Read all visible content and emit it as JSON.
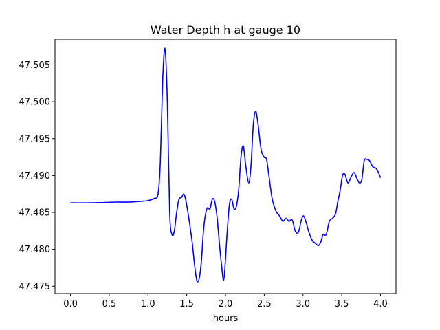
{
  "chart_data": {
    "type": "line",
    "title": "Water Depth h at gauge 10",
    "xlabel": "hours",
    "ylabel": "",
    "xlim": [
      -0.2,
      4.2
    ],
    "ylim": [
      47.474,
      47.5085
    ],
    "xticks": [
      0.0,
      0.5,
      1.0,
      1.5,
      2.0,
      2.5,
      3.0,
      3.5,
      4.0
    ],
    "xtick_labels": [
      "0.0",
      "0.5",
      "1.0",
      "1.5",
      "2.0",
      "2.5",
      "3.0",
      "3.5",
      "4.0"
    ],
    "yticks": [
      47.475,
      47.48,
      47.485,
      47.49,
      47.495,
      47.5,
      47.505
    ],
    "ytick_labels": [
      "47.475",
      "47.480",
      "47.485",
      "47.490",
      "47.495",
      "47.500",
      "47.505"
    ],
    "grid": false,
    "color": "#0000ff",
    "series": [
      {
        "name": "",
        "x": [
          0.0,
          0.3,
          0.6,
          0.75,
          0.9,
          1.0,
          1.08,
          1.13,
          1.16,
          1.19,
          1.22,
          1.25,
          1.28,
          1.31,
          1.34,
          1.37,
          1.4,
          1.43,
          1.46,
          1.48,
          1.5,
          1.53,
          1.57,
          1.6,
          1.63,
          1.66,
          1.69,
          1.72,
          1.76,
          1.8,
          1.83,
          1.86,
          1.89,
          1.92,
          1.95,
          1.98,
          2.02,
          2.05,
          2.08,
          2.11,
          2.14,
          2.17,
          2.2,
          2.23,
          2.26,
          2.3,
          2.33,
          2.36,
          2.39,
          2.42,
          2.46,
          2.5,
          2.53,
          2.56,
          2.6,
          2.63,
          2.66,
          2.7,
          2.74,
          2.78,
          2.82,
          2.86,
          2.9,
          2.94,
          2.98,
          3.01,
          3.05,
          3.08,
          3.12,
          3.16,
          3.2,
          3.23,
          3.26,
          3.3,
          3.34,
          3.38,
          3.42,
          3.45,
          3.48,
          3.51,
          3.54,
          3.58,
          3.62,
          3.66,
          3.7,
          3.73,
          3.76,
          3.79,
          3.82,
          3.86,
          3.9,
          3.94,
          3.97,
          4.0
        ],
        "y": [
          47.4863,
          47.4863,
          47.4864,
          47.4864,
          47.4865,
          47.4866,
          47.4869,
          47.4875,
          47.492,
          47.503,
          47.5072,
          47.5,
          47.485,
          47.482,
          47.4825,
          47.485,
          47.4868,
          47.487,
          47.4875,
          47.487,
          47.486,
          47.484,
          47.481,
          47.478,
          47.4758,
          47.476,
          47.4785,
          47.483,
          47.4855,
          47.4855,
          47.4868,
          47.4865,
          47.4845,
          47.481,
          47.4778,
          47.476,
          47.482,
          47.486,
          47.4868,
          47.4855,
          47.4858,
          47.488,
          47.4925,
          47.494,
          47.4915,
          47.489,
          47.4915,
          47.497,
          47.4987,
          47.497,
          47.4935,
          47.4925,
          47.4922,
          47.49,
          47.487,
          47.4858,
          47.485,
          47.4845,
          47.4838,
          47.4842,
          47.4838,
          47.484,
          47.4825,
          47.4823,
          47.484,
          47.4845,
          47.4833,
          47.4822,
          47.4812,
          47.4808,
          47.4805,
          47.481,
          47.482,
          47.482,
          47.4838,
          47.4842,
          47.4848,
          47.4865,
          47.488,
          47.49,
          47.4902,
          47.489,
          47.4898,
          47.4904,
          47.4895,
          47.489,
          47.4895,
          47.492,
          47.4922,
          47.492,
          47.4912,
          47.491,
          47.4905,
          47.4897
        ]
      }
    ]
  }
}
